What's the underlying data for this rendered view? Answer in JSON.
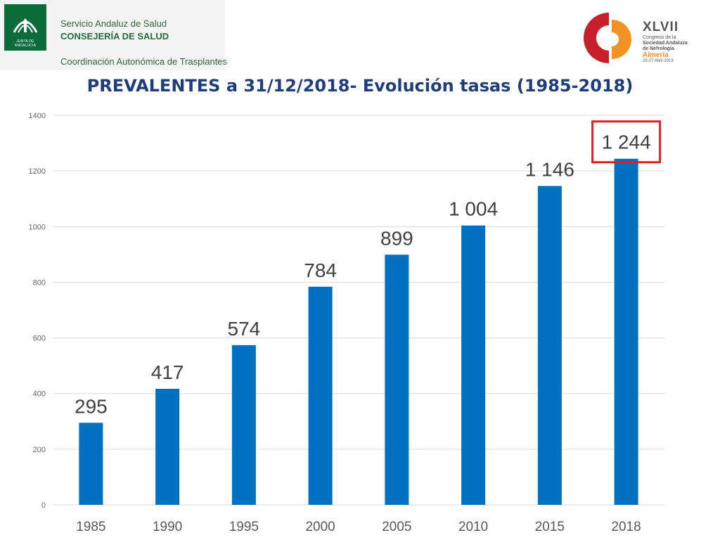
{
  "header": {
    "org_line_1": "Servicio Andaluz de Salud",
    "org_line_2": "CONSEJERÍA DE SALUD",
    "org_line_3": "Coordinación Autonómica de Trasplantes",
    "junta_caption": "JUNTA DE ANDALUCIA",
    "congress": {
      "roman": "XLVII",
      "line_1": "Congreso de la",
      "line_2": "Sociedad Andaluza",
      "line_3": "de Nefrología",
      "city": "Almería",
      "dates": "25-27 Abril 2019"
    }
  },
  "colors": {
    "bar": "#0070c0",
    "title": "#1f3d7a",
    "highlight_box": "#e02020",
    "junta_green": "#0b6b3a",
    "congress_red": "#c8202a",
    "congress_orange": "#f29223"
  },
  "chart_data": {
    "type": "bar",
    "title": "PREVALENTES a 31/12/2018- Evolución tasas (1985-2018)",
    "categories": [
      "1985",
      "1990",
      "1995",
      "2000",
      "2005",
      "2010",
      "2015",
      "2018"
    ],
    "values": [
      295,
      417,
      574,
      784,
      899,
      1004,
      1146,
      1244
    ],
    "value_labels": [
      "295",
      "417",
      "574",
      "784",
      "899",
      "1 004",
      "1 146",
      "1 244"
    ],
    "ylim": [
      0,
      1400
    ],
    "yticks": [
      0,
      200,
      400,
      600,
      800,
      1000,
      1200,
      1400
    ],
    "grid": true,
    "legend": "none",
    "highlighted_category": "2018"
  }
}
